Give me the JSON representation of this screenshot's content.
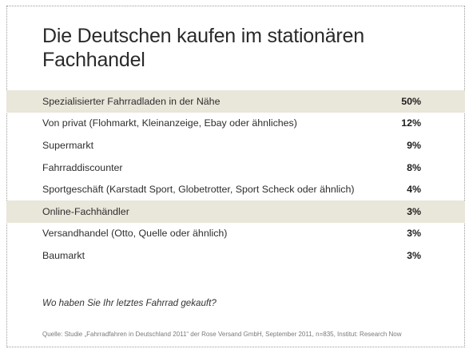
{
  "chart_data": {
    "type": "table",
    "title": "Die Deutschen kaufen im stationären Fachhandel",
    "rows": [
      {
        "label": "Spezialisierter Fahrradladen in der Nähe",
        "value": "50%",
        "highlight": true
      },
      {
        "label": "Von privat (Flohmarkt, Kleinanzeige, Ebay oder ähnliches)",
        "value": "12%",
        "highlight": false
      },
      {
        "label": "Supermarkt",
        "value": "9%",
        "highlight": false
      },
      {
        "label": "Fahrraddiscounter",
        "value": "8%",
        "highlight": false
      },
      {
        "label": "Sportgeschäft (Karstadt Sport, Globetrotter, Sport Scheck oder ähnlich)",
        "value": "4%",
        "highlight": false
      },
      {
        "label": "Online-Fachhändler",
        "value": "3%",
        "highlight": true
      },
      {
        "label": "Versandhandel (Otto, Quelle oder ähnlich)",
        "value": "3%",
        "highlight": false
      },
      {
        "label": "Baumarkt",
        "value": "3%",
        "highlight": false
      }
    ],
    "values": [
      50,
      12,
      9,
      8,
      4,
      3,
      3,
      3
    ],
    "question": "Wo haben Sie Ihr letztes Fahrrad gekauft?",
    "source": "Quelle: Studie „Fahrradfahren in Deutschland 2011“ der Rose Versand GmbH, September 2011, n=835, Institut: Research Now"
  },
  "colors": {
    "highlight": "#e9e6da",
    "text": "#2e2e2e",
    "source": "#7a7a7a"
  }
}
